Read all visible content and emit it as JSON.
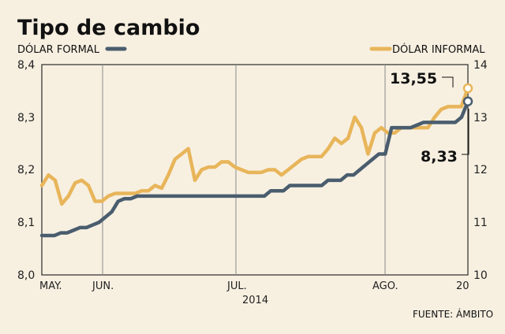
{
  "chart_data": {
    "type": "line",
    "title": "Tipo de cambio",
    "source": "FUENTE: ÁMBITO",
    "year_label": "2014",
    "x_ticks": [
      "MAY.",
      "JUN.",
      "JUL.",
      "AGO.",
      "20"
    ],
    "left_axis": {
      "ticks": [
        "8,4",
        "8,3",
        "8,2",
        "8,1",
        "8,0"
      ],
      "ylim": [
        8.0,
        8.4
      ]
    },
    "right_axis": {
      "ticks": [
        "14",
        "13",
        "12",
        "11",
        "10"
      ],
      "ylim": [
        10,
        14
      ]
    },
    "grid": "vertical month lines",
    "series": [
      {
        "name": "DÓLAR FORMAL",
        "axis": "left",
        "color": "#4a5d6e",
        "last_label": "8,33",
        "values": [
          8.075,
          8.075,
          8.075,
          8.08,
          8.08,
          8.085,
          8.09,
          8.09,
          8.095,
          8.1,
          8.11,
          8.12,
          8.14,
          8.145,
          8.145,
          8.15,
          8.15,
          8.15,
          8.15,
          8.15,
          8.15,
          8.15,
          8.15,
          8.15,
          8.15,
          8.15,
          8.15,
          8.15,
          8.15,
          8.15,
          8.15,
          8.15,
          8.15,
          8.15,
          8.15,
          8.15,
          8.16,
          8.16,
          8.16,
          8.17,
          8.17,
          8.17,
          8.17,
          8.17,
          8.17,
          8.18,
          8.18,
          8.18,
          8.19,
          8.19,
          8.2,
          8.21,
          8.22,
          8.23,
          8.23,
          8.28,
          8.28,
          8.28,
          8.28,
          8.285,
          8.29,
          8.29,
          8.29,
          8.29,
          8.29,
          8.29,
          8.3,
          8.33
        ]
      },
      {
        "name": "DÓLAR INFORMAL",
        "axis": "right",
        "color": "#e8b55a",
        "last_label": "13,55",
        "values": [
          11.7,
          11.9,
          11.8,
          11.35,
          11.5,
          11.75,
          11.8,
          11.7,
          11.4,
          11.4,
          11.5,
          11.55,
          11.55,
          11.55,
          11.55,
          11.6,
          11.6,
          11.7,
          11.65,
          11.9,
          12.2,
          12.3,
          12.4,
          11.8,
          12.0,
          12.05,
          12.05,
          12.15,
          12.15,
          12.05,
          12.0,
          11.95,
          11.95,
          11.95,
          12.0,
          12.0,
          11.9,
          12.0,
          12.1,
          12.2,
          12.25,
          12.25,
          12.25,
          12.4,
          12.6,
          12.5,
          12.6,
          13.0,
          12.8,
          12.3,
          12.7,
          12.8,
          12.7,
          12.7,
          12.8,
          12.8,
          12.8,
          12.8,
          12.8,
          13.0,
          13.15,
          13.2,
          13.2,
          13.2,
          13.55
        ]
      }
    ]
  }
}
